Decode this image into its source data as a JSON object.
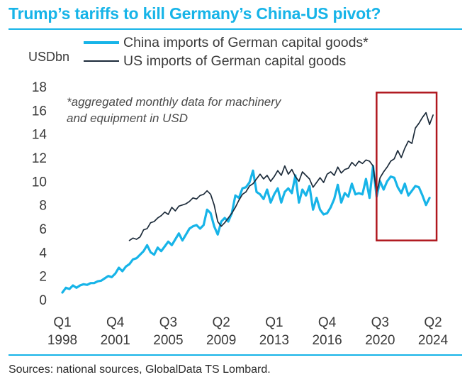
{
  "title": "Trump’s tariffs to kill Germany’s China-US pivot?",
  "source": "Sources: national sources, GlobalData TS Lombard.",
  "colors": {
    "title": "#17b4e8",
    "rule": "#17b4e8",
    "china": "#17b4e8",
    "us": "#1c2b3a",
    "highlight": "#b0171e"
  },
  "chart_data": {
    "type": "line",
    "title": "Trump’s tariffs to kill Germany’s China-US pivot?",
    "ylabel": "USDbn",
    "ylim": [
      0,
      18
    ],
    "yticks": [
      0,
      2,
      4,
      6,
      8,
      10,
      12,
      14,
      16,
      18
    ],
    "xlim": [
      1998.0,
      2025.0
    ],
    "xticks": [
      {
        "top": "Q1",
        "bottom": "1998",
        "x": 1998.0
      },
      {
        "top": "Q4",
        "bottom": "2001",
        "x": 2001.75
      },
      {
        "top": "Q3",
        "bottom": "2005",
        "x": 2005.5
      },
      {
        "top": "Q2",
        "bottom": "2009",
        "x": 2009.25
      },
      {
        "top": "Q1",
        "bottom": "2013",
        "x": 2013.0
      },
      {
        "top": "Q4",
        "bottom": "2016",
        "x": 2016.75
      },
      {
        "top": "Q3",
        "bottom": "2020",
        "x": 2020.5
      },
      {
        "top": "Q2",
        "bottom": "2024",
        "x": 2024.25
      }
    ],
    "annotation": "*aggregated monthly data for machinery and equipment in USD",
    "highlight": {
      "x_range": [
        2020.25,
        2024.5
      ],
      "y_range": [
        5.0,
        17.5
      ]
    },
    "grid": false,
    "legend_position": "top",
    "series": [
      {
        "name": "China imports of German capital goods*",
        "color_key": "china",
        "points": [
          [
            1998.0,
            0.6
          ],
          [
            1998.25,
            1.0
          ],
          [
            1998.5,
            0.9
          ],
          [
            1998.75,
            1.2
          ],
          [
            1999.0,
            1.0
          ],
          [
            1999.25,
            1.2
          ],
          [
            1999.5,
            1.3
          ],
          [
            1999.75,
            1.25
          ],
          [
            2000.0,
            1.4
          ],
          [
            2000.25,
            1.4
          ],
          [
            2000.5,
            1.55
          ],
          [
            2000.75,
            1.6
          ],
          [
            2001.0,
            1.8
          ],
          [
            2001.25,
            2.0
          ],
          [
            2001.5,
            1.9
          ],
          [
            2001.75,
            2.2
          ],
          [
            2002.0,
            2.7
          ],
          [
            2002.25,
            2.4
          ],
          [
            2002.5,
            2.8
          ],
          [
            2002.75,
            3.0
          ],
          [
            2003.0,
            3.4
          ],
          [
            2003.25,
            3.5
          ],
          [
            2003.5,
            3.8
          ],
          [
            2003.75,
            4.1
          ],
          [
            2004.0,
            4.6
          ],
          [
            2004.25,
            4.0
          ],
          [
            2004.5,
            3.8
          ],
          [
            2004.75,
            4.4
          ],
          [
            2005.0,
            4.1
          ],
          [
            2005.25,
            4.5
          ],
          [
            2005.5,
            4.9
          ],
          [
            2005.75,
            4.6
          ],
          [
            2006.0,
            5.1
          ],
          [
            2006.25,
            5.6
          ],
          [
            2006.5,
            5.0
          ],
          [
            2006.75,
            5.5
          ],
          [
            2007.0,
            6.0
          ],
          [
            2007.25,
            6.2
          ],
          [
            2007.5,
            6.3
          ],
          [
            2007.75,
            6.0
          ],
          [
            2008.0,
            6.3
          ],
          [
            2008.25,
            7.6
          ],
          [
            2008.5,
            7.3
          ],
          [
            2008.75,
            6.2
          ],
          [
            2009.0,
            5.5
          ],
          [
            2009.25,
            6.6
          ],
          [
            2009.5,
            6.9
          ],
          [
            2009.75,
            6.6
          ],
          [
            2010.0,
            7.3
          ],
          [
            2010.25,
            8.8
          ],
          [
            2010.5,
            8.6
          ],
          [
            2010.75,
            9.4
          ],
          [
            2011.0,
            9.5
          ],
          [
            2011.25,
            9.9
          ],
          [
            2011.5,
            10.9
          ],
          [
            2011.75,
            9.1
          ],
          [
            2012.0,
            8.9
          ],
          [
            2012.25,
            8.5
          ],
          [
            2012.5,
            9.3
          ],
          [
            2012.75,
            8.2
          ],
          [
            2013.0,
            8.9
          ],
          [
            2013.25,
            9.4
          ],
          [
            2013.5,
            8.2
          ],
          [
            2013.75,
            9.1
          ],
          [
            2014.0,
            9.4
          ],
          [
            2014.25,
            9.0
          ],
          [
            2014.5,
            10.5
          ],
          [
            2014.75,
            8.2
          ],
          [
            2015.0,
            9.3
          ],
          [
            2015.25,
            8.8
          ],
          [
            2015.5,
            9.6
          ],
          [
            2015.75,
            7.6
          ],
          [
            2016.0,
            8.6
          ],
          [
            2016.25,
            7.6
          ],
          [
            2016.5,
            7.2
          ],
          [
            2016.75,
            7.3
          ],
          [
            2017.0,
            7.8
          ],
          [
            2017.25,
            8.5
          ],
          [
            2017.5,
            9.7
          ],
          [
            2017.75,
            8.2
          ],
          [
            2018.0,
            9.0
          ],
          [
            2018.25,
            8.7
          ],
          [
            2018.5,
            9.8
          ],
          [
            2018.75,
            8.9
          ],
          [
            2019.0,
            9.0
          ],
          [
            2019.25,
            8.9
          ],
          [
            2019.5,
            10.2
          ],
          [
            2019.75,
            8.6
          ],
          [
            2020.0,
            11.3
          ],
          [
            2020.25,
            8.7
          ],
          [
            2020.5,
            10.0
          ],
          [
            2020.75,
            9.3
          ],
          [
            2021.0,
            10.0
          ],
          [
            2021.25,
            10.4
          ],
          [
            2021.5,
            10.3
          ],
          [
            2021.75,
            9.5
          ],
          [
            2022.0,
            9.0
          ],
          [
            2022.25,
            9.8
          ],
          [
            2022.5,
            8.8
          ],
          [
            2022.75,
            9.2
          ],
          [
            2023.0,
            9.6
          ],
          [
            2023.25,
            9.5
          ],
          [
            2023.5,
            8.8
          ],
          [
            2023.75,
            8.0
          ],
          [
            2024.0,
            8.6
          ]
        ]
      },
      {
        "name": "US imports of German capital goods",
        "color_key": "us",
        "points": [
          [
            2002.75,
            5.0
          ],
          [
            2003.0,
            5.2
          ],
          [
            2003.25,
            5.1
          ],
          [
            2003.5,
            5.3
          ],
          [
            2003.75,
            5.9
          ],
          [
            2004.0,
            6.0
          ],
          [
            2004.25,
            6.5
          ],
          [
            2004.5,
            6.6
          ],
          [
            2004.75,
            6.9
          ],
          [
            2005.0,
            7.1
          ],
          [
            2005.25,
            7.4
          ],
          [
            2005.5,
            7.2
          ],
          [
            2005.75,
            7.8
          ],
          [
            2006.0,
            7.5
          ],
          [
            2006.25,
            7.9
          ],
          [
            2006.5,
            8.0
          ],
          [
            2006.75,
            8.1
          ],
          [
            2007.0,
            8.3
          ],
          [
            2007.25,
            8.6
          ],
          [
            2007.5,
            8.5
          ],
          [
            2007.75,
            8.8
          ],
          [
            2008.0,
            8.9
          ],
          [
            2008.25,
            9.2
          ],
          [
            2008.5,
            8.9
          ],
          [
            2008.75,
            8.0
          ],
          [
            2009.0,
            6.6
          ],
          [
            2009.25,
            6.2
          ],
          [
            2009.5,
            6.5
          ],
          [
            2009.75,
            6.9
          ],
          [
            2010.0,
            7.3
          ],
          [
            2010.25,
            7.8
          ],
          [
            2010.5,
            8.4
          ],
          [
            2010.75,
            8.9
          ],
          [
            2011.0,
            9.1
          ],
          [
            2011.25,
            9.6
          ],
          [
            2011.5,
            9.8
          ],
          [
            2011.75,
            10.2
          ],
          [
            2012.0,
            10.6
          ],
          [
            2012.25,
            10.2
          ],
          [
            2012.5,
            10.5
          ],
          [
            2012.75,
            10.0
          ],
          [
            2013.0,
            10.4
          ],
          [
            2013.25,
            10.9
          ],
          [
            2013.5,
            10.5
          ],
          [
            2013.75,
            11.3
          ],
          [
            2014.0,
            10.6
          ],
          [
            2014.25,
            11.0
          ],
          [
            2014.5,
            10.4
          ],
          [
            2014.75,
            10.0
          ],
          [
            2015.0,
            10.8
          ],
          [
            2015.25,
            10.5
          ],
          [
            2015.5,
            10.2
          ],
          [
            2015.75,
            9.5
          ],
          [
            2016.0,
            9.9
          ],
          [
            2016.25,
            10.3
          ],
          [
            2016.5,
            9.9
          ],
          [
            2016.75,
            10.6
          ],
          [
            2017.0,
            10.8
          ],
          [
            2017.25,
            10.5
          ],
          [
            2017.5,
            11.2
          ],
          [
            2017.75,
            10.7
          ],
          [
            2018.0,
            11.0
          ],
          [
            2018.25,
            11.1
          ],
          [
            2018.5,
            11.6
          ],
          [
            2018.75,
            11.3
          ],
          [
            2019.0,
            11.7
          ],
          [
            2019.25,
            11.5
          ],
          [
            2019.5,
            11.8
          ],
          [
            2019.75,
            11.7
          ],
          [
            2020.0,
            11.3
          ],
          [
            2020.25,
            9.0
          ],
          [
            2020.5,
            10.3
          ],
          [
            2020.75,
            10.8
          ],
          [
            2021.0,
            11.2
          ],
          [
            2021.25,
            11.7
          ],
          [
            2021.5,
            11.9
          ],
          [
            2021.75,
            12.6
          ],
          [
            2022.0,
            12.0
          ],
          [
            2022.25,
            12.8
          ],
          [
            2022.5,
            13.4
          ],
          [
            2022.75,
            13.2
          ],
          [
            2023.0,
            14.5
          ],
          [
            2023.25,
            14.9
          ],
          [
            2023.5,
            15.4
          ],
          [
            2023.75,
            15.8
          ],
          [
            2024.0,
            14.8
          ],
          [
            2024.25,
            15.6
          ]
        ]
      }
    ]
  }
}
